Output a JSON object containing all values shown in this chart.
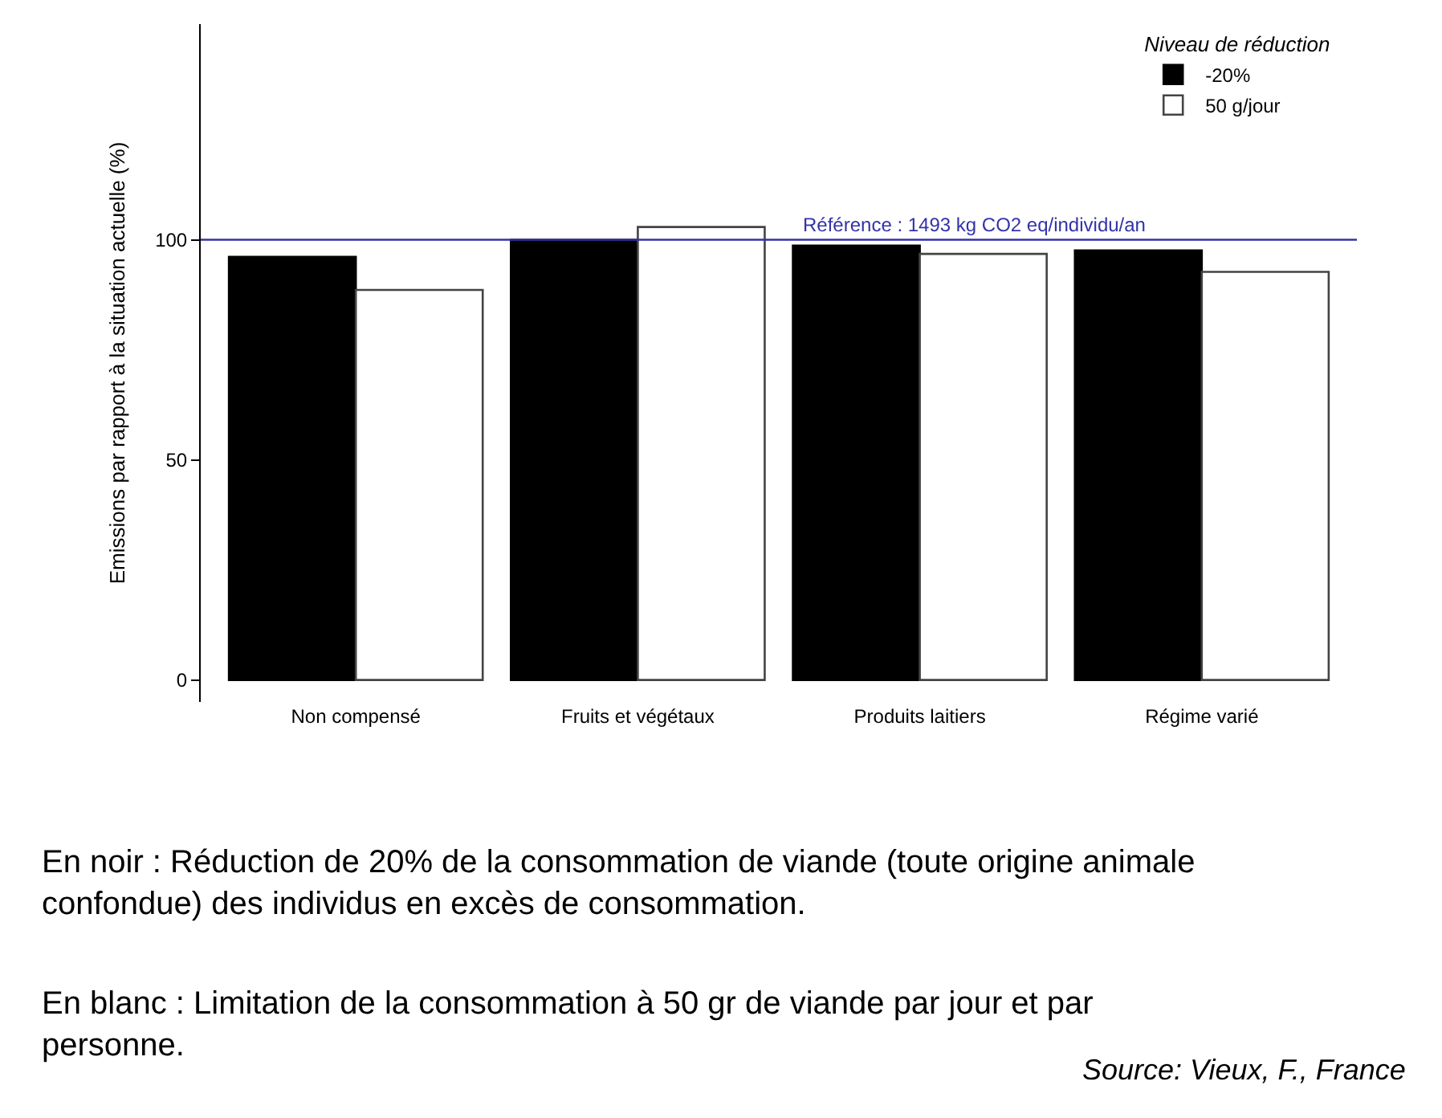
{
  "chart_data": {
    "type": "bar",
    "ylabel": "Emissions par rapport à la situation actuelle (%)",
    "legend_title": "Niveau de réduction",
    "categories": [
      "Non compensé",
      "Fruits et végétaux",
      "Produits laitiers",
      "Régime varié"
    ],
    "series": [
      {
        "name": "-20%",
        "color": "#000000",
        "values": [
          96.1,
          100,
          98.7,
          97.6
        ]
      },
      {
        "name": "50 g/jour",
        "color": "#ffffff",
        "values": [
          88.6,
          102.9,
          96.8,
          92.7
        ]
      }
    ],
    "ylim": [
      -5,
      149
    ],
    "yticks": [
      0,
      50,
      100
    ],
    "ref_lines": [
      {
        "axis": "y",
        "value": 100,
        "color": "#3333aa"
      }
    ],
    "legend": "top right",
    "annotations": [
      {
        "text": "Référence : 1493 kg CO2 eq/individu/an",
        "y": 100
      },
      "En noir : Réduction de 20% de la consommation de viande (toute origine animale confondue) des individus en excès de consommation.",
      "En blanc : Limitation de la consommation à 50 gr de viande par jour et par personne.",
      "Source: Vieux, F., France"
    ]
  }
}
